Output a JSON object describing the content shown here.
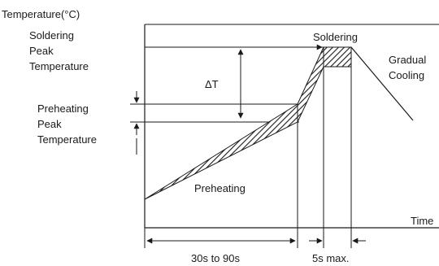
{
  "labels": {
    "y_axis": "Temperature(°C)",
    "soldering_peak_line1": "Soldering",
    "soldering_peak_line2": "Peak",
    "soldering_peak_line3": "Temperature",
    "delta_t": "ΔT",
    "preheating_peak_line1": "Preheating",
    "preheating_peak_line2": "Peak",
    "preheating_peak_line3": "Temperature",
    "soldering_zone": "Soldering",
    "gradual_line1": "Gradual",
    "gradual_line2": "Cooling",
    "preheating_zone": "Preheating",
    "x_axis": "Time",
    "preheat_duration": "30s to 90s",
    "solder_duration": "5s max."
  },
  "colors": {
    "line": "#1a1a1a",
    "background": "#ffffff"
  }
}
